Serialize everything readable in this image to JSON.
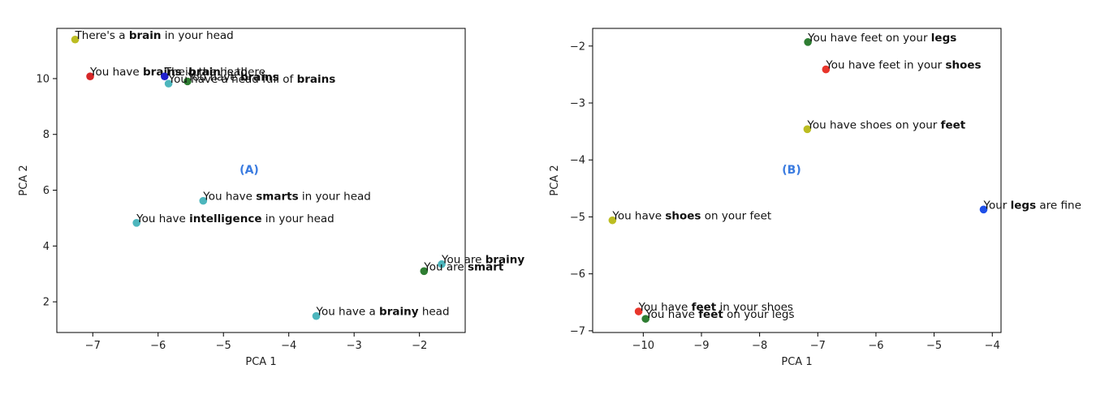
{
  "chart_data": [
    {
      "type": "scatter",
      "panel_label": "(A)",
      "xlabel": "PCA 1",
      "ylabel": "PCA 2",
      "xlim": [
        -7.55,
        -1.3
      ],
      "ylim": [
        0.9,
        11.8
      ],
      "xticks": [
        -7,
        -6,
        -5,
        -4,
        -3,
        -2
      ],
      "yticks": [
        2,
        4,
        6,
        8,
        10
      ],
      "grid": false,
      "points": [
        {
          "x": -7.27,
          "y": 11.4,
          "color": "#bcbd22",
          "parts": [
            {
              "t": "There's a ",
              "b": false
            },
            {
              "t": "brain",
              "b": true
            },
            {
              "t": " in your head",
              "b": false
            }
          ]
        },
        {
          "x": -7.04,
          "y": 10.08,
          "color": "#d62728",
          "parts": [
            {
              "t": "You have ",
              "b": false
            },
            {
              "t": "brains",
              "b": true
            },
            {
              "t": " in the head",
              "b": false
            }
          ]
        },
        {
          "x": -5.9,
          "y": 10.08,
          "color": "#1f1fcc",
          "parts": [
            {
              "t": "The ",
              "b": false
            },
            {
              "t": "brain",
              "b": true
            },
            {
              "t": " is there",
              "b": false
            }
          ]
        },
        {
          "x": -5.55,
          "y": 9.9,
          "color": "#2e7d32",
          "parts": [
            {
              "t": "You have ",
              "b": false
            },
            {
              "t": "brains",
              "b": true
            }
          ]
        },
        {
          "x": -5.84,
          "y": 9.82,
          "color": "#4db6bd",
          "parts": [
            {
              "t": "You have a head full of ",
              "b": false
            },
            {
              "t": "brains",
              "b": true
            }
          ]
        },
        {
          "x": -5.31,
          "y": 5.62,
          "color": "#4db6bd",
          "parts": [
            {
              "t": "You have ",
              "b": false
            },
            {
              "t": "smarts",
              "b": true
            },
            {
              "t": " in your head",
              "b": false
            }
          ]
        },
        {
          "x": -6.33,
          "y": 4.83,
          "color": "#4db6bd",
          "parts": [
            {
              "t": "You have ",
              "b": false
            },
            {
              "t": "intelligence",
              "b": true
            },
            {
              "t": " in your head",
              "b": false
            }
          ]
        },
        {
          "x": -1.66,
          "y": 3.35,
          "color": "#4db6bd",
          "parts": [
            {
              "t": "You are ",
              "b": false
            },
            {
              "t": "brainy",
              "b": true
            }
          ]
        },
        {
          "x": -1.93,
          "y": 3.1,
          "color": "#2e7d32",
          "parts": [
            {
              "t": "You are ",
              "b": false
            },
            {
              "t": "smart",
              "b": true
            }
          ]
        },
        {
          "x": -3.58,
          "y": 1.49,
          "color": "#4db6bd",
          "parts": [
            {
              "t": "You have a ",
              "b": false
            },
            {
              "t": "brainy",
              "b": true
            },
            {
              "t": " head",
              "b": false
            }
          ]
        }
      ]
    },
    {
      "type": "scatter",
      "panel_label": "(B)",
      "xlabel": "PCA 1",
      "ylabel": "PCA 2",
      "xlim": [
        -10.87,
        -3.85
      ],
      "ylim": [
        -7.03,
        -1.69
      ],
      "xticks": [
        -10,
        -9,
        -8,
        -7,
        -6,
        -5,
        -4
      ],
      "yticks": [
        -2,
        -3,
        -4,
        -5,
        -6,
        -7
      ],
      "grid": false,
      "points": [
        {
          "x": -7.17,
          "y": -1.93,
          "color": "#2e7d32",
          "parts": [
            {
              "t": "You have feet on your ",
              "b": false
            },
            {
              "t": "legs",
              "b": true
            }
          ]
        },
        {
          "x": -6.86,
          "y": -2.41,
          "color": "#e8352b",
          "parts": [
            {
              "t": "You have feet in your ",
              "b": false
            },
            {
              "t": "shoes",
              "b": true
            }
          ]
        },
        {
          "x": -7.18,
          "y": -3.46,
          "color": "#bcbd22",
          "parts": [
            {
              "t": "You have shoes on your ",
              "b": false
            },
            {
              "t": "feet",
              "b": true
            }
          ]
        },
        {
          "x": -4.15,
          "y": -4.87,
          "color": "#1f4fe8",
          "parts": [
            {
              "t": "Your ",
              "b": false
            },
            {
              "t": "legs",
              "b": true
            },
            {
              "t": " are fine",
              "b": false
            }
          ]
        },
        {
          "x": -10.53,
          "y": -5.06,
          "color": "#bcbd22",
          "parts": [
            {
              "t": "You have ",
              "b": false
            },
            {
              "t": "shoes",
              "b": true
            },
            {
              "t": " on your feet",
              "b": false
            }
          ]
        },
        {
          "x": -10.08,
          "y": -6.66,
          "color": "#e8352b",
          "parts": [
            {
              "t": "You have ",
              "b": false
            },
            {
              "t": "feet",
              "b": true
            },
            {
              "t": " in your shoes",
              "b": false
            }
          ]
        },
        {
          "x": -9.96,
          "y": -6.79,
          "color": "#2e7d32",
          "parts": [
            {
              "t": "You have ",
              "b": false
            },
            {
              "t": "feet",
              "b": true
            },
            {
              "t": " on your legs",
              "b": false
            }
          ]
        }
      ]
    }
  ]
}
